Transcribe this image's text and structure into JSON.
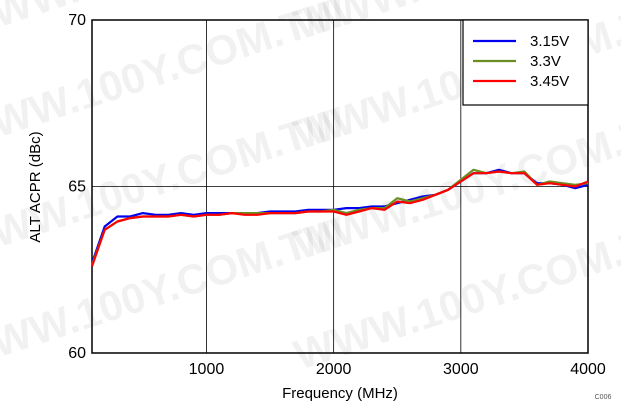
{
  "watermark": "WWW.100Y.COM.TW",
  "figure_code": "C006",
  "chart_data": {
    "type": "line",
    "title": "",
    "xlabel": "Frequency (MHz)",
    "ylabel": "ALT ACPR (dBc)",
    "xlim": [
      100,
      4000
    ],
    "ylim": [
      60,
      70
    ],
    "xticks": [
      1000,
      2000,
      3000,
      4000
    ],
    "yticks": [
      60,
      65,
      70
    ],
    "grid": true,
    "legend_position": "top-right",
    "x": [
      100,
      200,
      300,
      400,
      500,
      600,
      700,
      800,
      900,
      1000,
      1100,
      1200,
      1300,
      1400,
      1500,
      1600,
      1700,
      1800,
      1900,
      2000,
      2100,
      2200,
      2300,
      2400,
      2500,
      2600,
      2700,
      2800,
      2900,
      3000,
      3100,
      3200,
      3300,
      3400,
      3500,
      3600,
      3700,
      3800,
      3900,
      4000
    ],
    "series": [
      {
        "name": "3.15V",
        "color": "#0000ee",
        "values": [
          62.7,
          63.8,
          64.1,
          64.1,
          64.2,
          64.15,
          64.15,
          64.2,
          64.15,
          64.2,
          64.2,
          64.2,
          64.2,
          64.2,
          64.25,
          64.25,
          64.25,
          64.3,
          64.3,
          64.3,
          64.35,
          64.35,
          64.4,
          64.4,
          64.5,
          64.6,
          64.7,
          64.75,
          64.9,
          65.15,
          65.4,
          65.4,
          65.5,
          65.4,
          65.4,
          65.1,
          65.1,
          65.05,
          64.95,
          65.05
        ]
      },
      {
        "name": "3.3V",
        "color": "#6b8e23",
        "values": [
          62.65,
          63.7,
          63.95,
          64.05,
          64.1,
          64.1,
          64.1,
          64.15,
          64.1,
          64.15,
          64.15,
          64.2,
          64.2,
          64.2,
          64.2,
          64.2,
          64.2,
          64.25,
          64.25,
          64.3,
          64.2,
          64.3,
          64.35,
          64.35,
          64.65,
          64.55,
          64.65,
          64.75,
          64.9,
          65.2,
          65.5,
          65.4,
          65.45,
          65.4,
          65.45,
          65.05,
          65.15,
          65.1,
          65.05,
          65.1
        ]
      },
      {
        "name": "3.45V",
        "color": "#ff0000",
        "values": [
          62.6,
          63.7,
          63.95,
          64.05,
          64.1,
          64.1,
          64.1,
          64.15,
          64.1,
          64.15,
          64.15,
          64.2,
          64.15,
          64.15,
          64.2,
          64.2,
          64.2,
          64.25,
          64.25,
          64.25,
          64.15,
          64.25,
          64.35,
          64.3,
          64.55,
          64.5,
          64.6,
          64.75,
          64.9,
          65.15,
          65.4,
          65.4,
          65.45,
          65.4,
          65.4,
          65.05,
          65.1,
          65.05,
          65.0,
          65.15
        ]
      }
    ]
  }
}
